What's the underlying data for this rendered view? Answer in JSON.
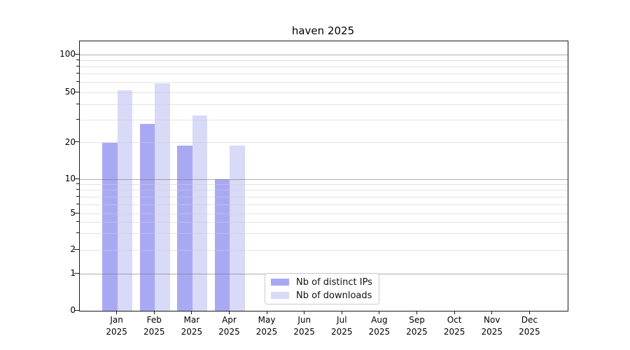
{
  "title": "haven 2025",
  "chart_data": {
    "type": "bar",
    "title": "haven 2025",
    "x_categories": [
      {
        "month": "Jan",
        "year": "2025"
      },
      {
        "month": "Feb",
        "year": "2025"
      },
      {
        "month": "Mar",
        "year": "2025"
      },
      {
        "month": "Apr",
        "year": "2025"
      },
      {
        "month": "May",
        "year": "2025"
      },
      {
        "month": "Jun",
        "year": "2025"
      },
      {
        "month": "Jul",
        "year": "2025"
      },
      {
        "month": "Aug",
        "year": "2025"
      },
      {
        "month": "Sep",
        "year": "2025"
      },
      {
        "month": "Oct",
        "year": "2025"
      },
      {
        "month": "Nov",
        "year": "2025"
      },
      {
        "month": "Dec",
        "year": "2025"
      }
    ],
    "series": [
      {
        "name": "Nb of distinct IPs",
        "color": "#a9a9f3",
        "values": [
          20,
          28,
          19,
          10,
          null,
          null,
          null,
          null,
          null,
          null,
          null,
          null
        ]
      },
      {
        "name": "Nb of downloads",
        "color": "#d9d9f8",
        "values": [
          52,
          59,
          33,
          19,
          null,
          null,
          null,
          null,
          null,
          null,
          null,
          null
        ]
      }
    ],
    "yscale": "symlog",
    "ylim": [
      0,
      130
    ],
    "ytick_values": [
      0,
      1,
      2,
      5,
      10,
      20,
      50,
      100
    ],
    "ytick_labels": [
      "0",
      "1",
      "2",
      "5",
      "10",
      "20",
      "50",
      "100"
    ],
    "major_grid_values": [
      1,
      10,
      100
    ],
    "minor_grid_values": [
      2,
      3,
      4,
      5,
      6,
      7,
      8,
      9,
      20,
      30,
      40,
      50,
      60,
      70,
      80,
      90
    ],
    "grid": "horizontal",
    "legend_position": "lower-center-inside"
  }
}
